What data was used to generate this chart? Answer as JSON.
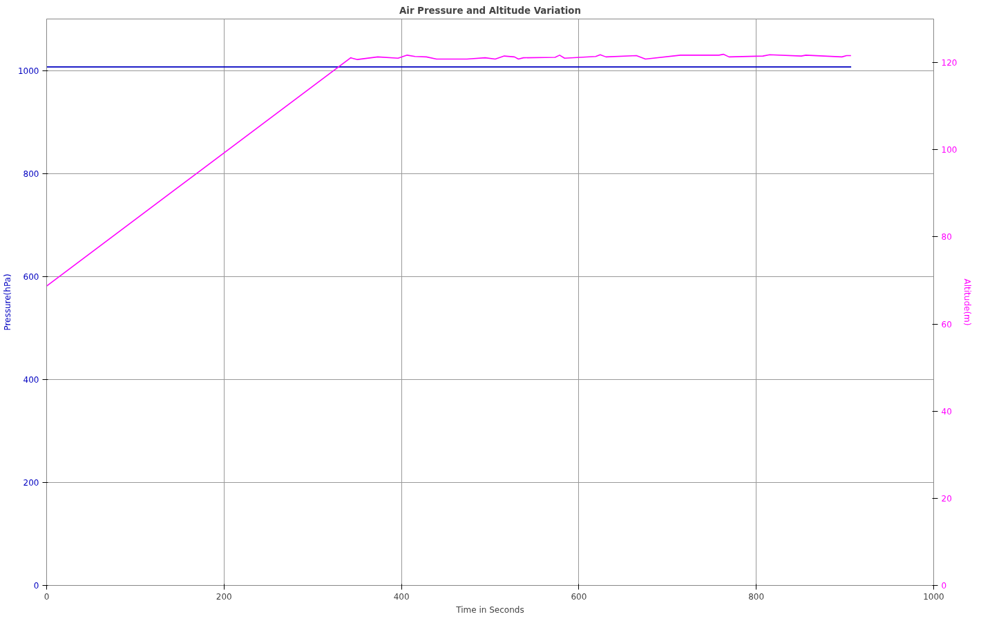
{
  "chart_data": {
    "type": "line",
    "title": "Air Pressure and Altitude Variation",
    "xlabel": "Time in Seconds",
    "ylabel": "Pressure(hPa)",
    "y2label": "Altitude(m)",
    "xlim": [
      0,
      1000
    ],
    "xticks": [
      0,
      200,
      400,
      600,
      800,
      1000
    ],
    "ylim": [
      0,
      1100
    ],
    "yticks": [
      0,
      200,
      400,
      600,
      800,
      1000
    ],
    "y2lim": [
      0,
      130
    ],
    "y2ticks": [
      0,
      20,
      40,
      60,
      80,
      100,
      120
    ],
    "grid": true,
    "series": [
      {
        "color": "#0000c0",
        "x": [
          0,
          907
        ],
        "values": [
          1007,
          1007
        ]
      },
      {
        "color": "#ff00ff",
        "axis": "y2",
        "x": [
          0,
          342.8,
          346.5,
          350.4,
          373.3,
          396.2,
          406.4,
          415.3,
          428.1,
          439.5,
          473.9,
          494.3,
          505.7,
          515.9,
          527.4,
          531.9,
          537.5,
          573.2,
          578.3,
          583.9,
          619.0,
          624.1,
          630.5,
          664.9,
          675.1,
          714.5,
          720.9,
          757.9,
          762.9,
          769.3,
          807.5,
          815.1,
          850.8,
          855.9,
          896.6,
          901.7,
          906.8
        ],
        "values": [
          68.7,
          121.1,
          120.9,
          120.7,
          121.3,
          121.0,
          121.7,
          121.4,
          121.3,
          120.8,
          120.8,
          121.1,
          120.8,
          121.5,
          121.3,
          120.8,
          121.1,
          121.2,
          121.7,
          121.0,
          121.4,
          121.8,
          121.3,
          121.6,
          120.8,
          121.7,
          121.7,
          121.7,
          121.9,
          121.3,
          121.5,
          121.8,
          121.5,
          121.7,
          121.3,
          121.6,
          121.6
        ]
      }
    ]
  }
}
